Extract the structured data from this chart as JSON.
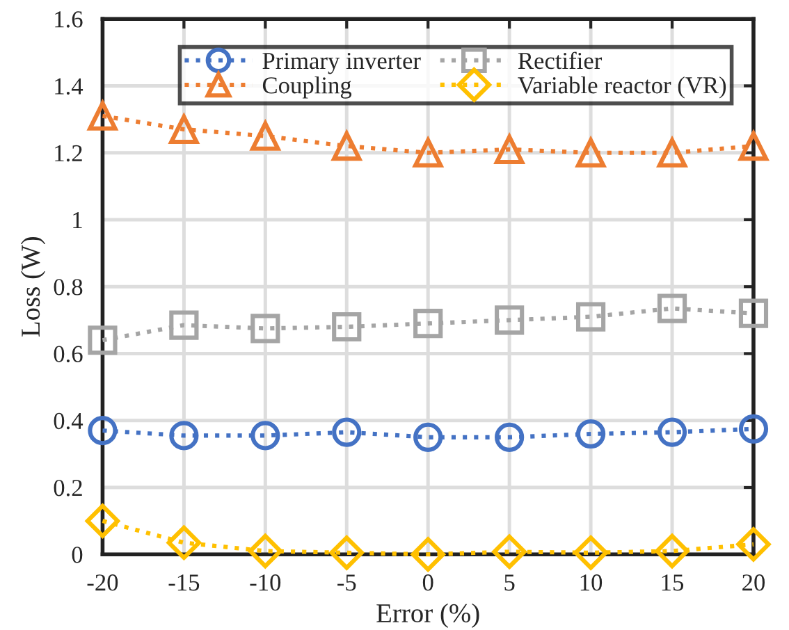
{
  "chart_data": {
    "type": "line",
    "xlabel": "Error (%)",
    "ylabel": "Loss (W)",
    "x": [
      -20,
      -15,
      -10,
      -5,
      0,
      5,
      10,
      15,
      20
    ],
    "series": [
      {
        "name": "Primary inverter",
        "color": "#4472c4",
        "marker": "circle",
        "values": [
          0.37,
          0.355,
          0.355,
          0.365,
          0.35,
          0.35,
          0.36,
          0.365,
          0.375
        ]
      },
      {
        "name": "Coupling",
        "color": "#ed7d31",
        "marker": "triangle",
        "values": [
          1.31,
          1.27,
          1.25,
          1.22,
          1.2,
          1.21,
          1.2,
          1.2,
          1.22
        ]
      },
      {
        "name": "Rectifier",
        "color": "#a5a5a5",
        "marker": "square",
        "values": [
          0.64,
          0.685,
          0.675,
          0.68,
          0.69,
          0.7,
          0.71,
          0.735,
          0.72
        ]
      },
      {
        "name": "Variable reactor (VR)",
        "color": "#ffc000",
        "marker": "diamond",
        "values": [
          0.1,
          0.035,
          0.01,
          0.005,
          0.0,
          0.008,
          0.005,
          0.01,
          0.03
        ]
      }
    ],
    "xlim": [
      -20,
      20
    ],
    "xticks": [
      -20,
      -15,
      -10,
      -5,
      0,
      5,
      10,
      15,
      20
    ],
    "ylim": [
      0,
      1.6
    ],
    "yticks": [
      0,
      0.2,
      0.4,
      0.6,
      0.8,
      1,
      1.2,
      1.4,
      1.6
    ],
    "grid": true,
    "legend": "top right",
    "line_style": "dotted"
  }
}
